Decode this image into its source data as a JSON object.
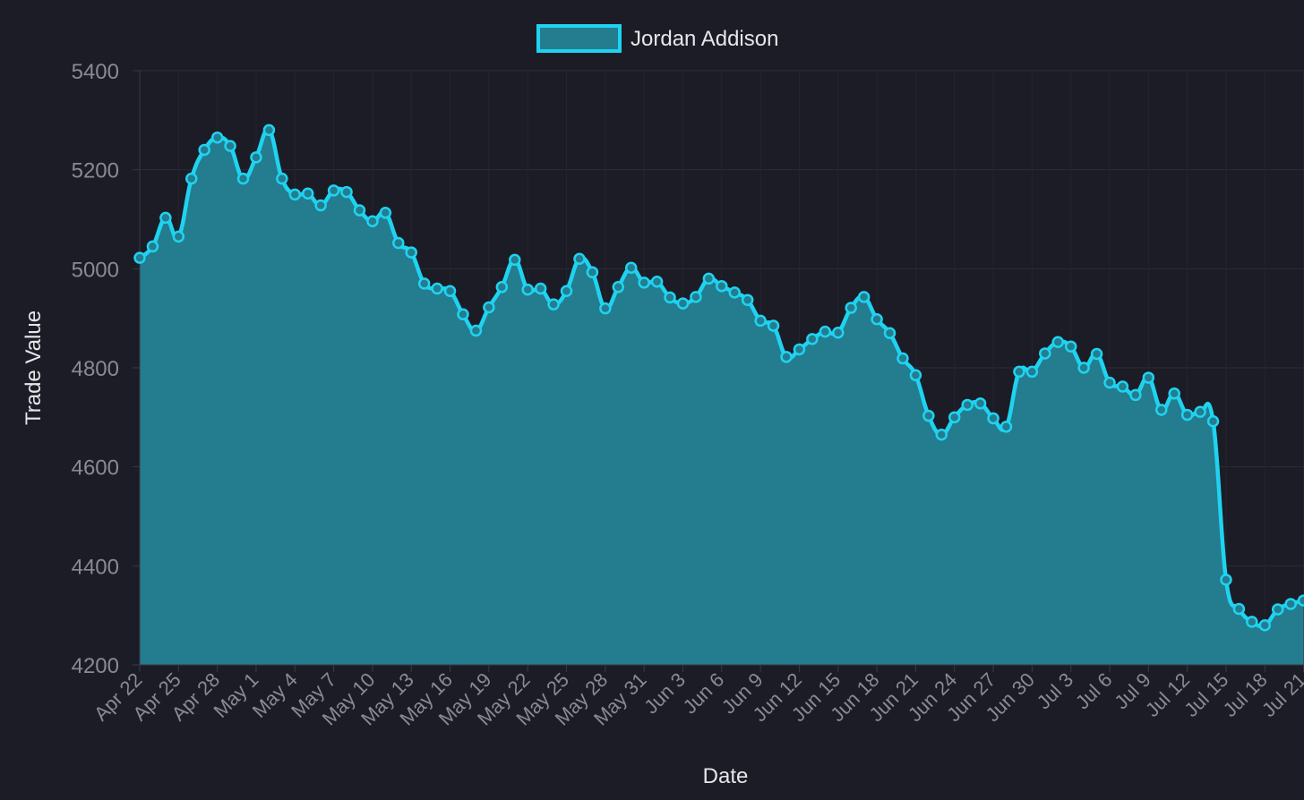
{
  "chart_data": {
    "type": "area",
    "title": "",
    "xlabel": "Date",
    "ylabel": "Trade Value",
    "ylim": [
      4200,
      5400
    ],
    "yticks": [
      4200,
      4400,
      4600,
      4800,
      5000,
      5200,
      5400
    ],
    "grid": true,
    "legend": "top-center",
    "x_tick_labels": [
      "Apr 22",
      "Apr 25",
      "Apr 28",
      "May 1",
      "May 4",
      "May 7",
      "May 10",
      "May 13",
      "May 16",
      "May 19",
      "May 22",
      "May 25",
      "May 28",
      "May 31",
      "Jun 3",
      "Jun 6",
      "Jun 9",
      "Jun 12",
      "Jun 15",
      "Jun 18",
      "Jun 21",
      "Jun 24",
      "Jun 27",
      "Jun 30",
      "Jul 3",
      "Jul 6",
      "Jul 9",
      "Jul 12",
      "Jul 15",
      "Jul 18",
      "Jul 21"
    ],
    "series": [
      {
        "name": "Jordan Addison",
        "color": "#1fd3f0",
        "fill": "#247c8f",
        "x": [
          "Apr 22",
          "Apr 23",
          "Apr 24",
          "Apr 25",
          "Apr 26",
          "Apr 27",
          "Apr 28",
          "Apr 29",
          "Apr 30",
          "May 1",
          "May 2",
          "May 3",
          "May 4",
          "May 5",
          "May 6",
          "May 7",
          "May 8",
          "May 9",
          "May 10",
          "May 11",
          "May 12",
          "May 13",
          "May 14",
          "May 15",
          "May 16",
          "May 17",
          "May 18",
          "May 19",
          "May 20",
          "May 21",
          "May 22",
          "May 23",
          "May 24",
          "May 25",
          "May 26",
          "May 27",
          "May 28",
          "May 29",
          "May 30",
          "May 31",
          "Jun 1",
          "Jun 2",
          "Jun 3",
          "Jun 4",
          "Jun 5",
          "Jun 6",
          "Jun 7",
          "Jun 8",
          "Jun 9",
          "Jun 10",
          "Jun 11",
          "Jun 12",
          "Jun 13",
          "Jun 14",
          "Jun 15",
          "Jun 16",
          "Jun 17",
          "Jun 18",
          "Jun 19",
          "Jun 20",
          "Jun 21",
          "Jun 22",
          "Jun 23",
          "Jun 24",
          "Jun 25",
          "Jun 26",
          "Jun 27",
          "Jun 28",
          "Jun 29",
          "Jun 30",
          "Jul 1",
          "Jul 2",
          "Jul 3",
          "Jul 4",
          "Jul 5",
          "Jul 6",
          "Jul 7",
          "Jul 8",
          "Jul 9",
          "Jul 10",
          "Jul 11",
          "Jul 12",
          "Jul 13",
          "Jul 14",
          "Jul 15",
          "Jul 16",
          "Jul 17",
          "Jul 18",
          "Jul 19",
          "Jul 20",
          "Jul 21"
        ],
        "values": [
          5022,
          5045,
          5103,
          5065,
          5182,
          5240,
          5265,
          5248,
          5182,
          5225,
          5280,
          5182,
          5150,
          5152,
          5128,
          5158,
          5155,
          5118,
          5096,
          5113,
          5052,
          5033,
          4970,
          4960,
          4955,
          4908,
          4875,
          4922,
          4963,
          5018,
          4958,
          4960,
          4928,
          4955,
          5020,
          4993,
          4920,
          4963,
          5002,
          4972,
          4974,
          4942,
          4930,
          4943,
          4980,
          4965,
          4952,
          4937,
          4895,
          4885,
          4822,
          4837,
          4858,
          4873,
          4871,
          4921,
          4943,
          4898,
          4870,
          4819,
          4785,
          4703,
          4665,
          4700,
          4725,
          4728,
          4698,
          4681,
          4792,
          4792,
          4829,
          4852,
          4843,
          4800,
          4828,
          4770,
          4762,
          4745,
          4780,
          4715,
          4748,
          4705,
          4711,
          4692,
          4372,
          4313,
          4287,
          4280,
          4312,
          4323,
          4330
        ]
      }
    ]
  }
}
